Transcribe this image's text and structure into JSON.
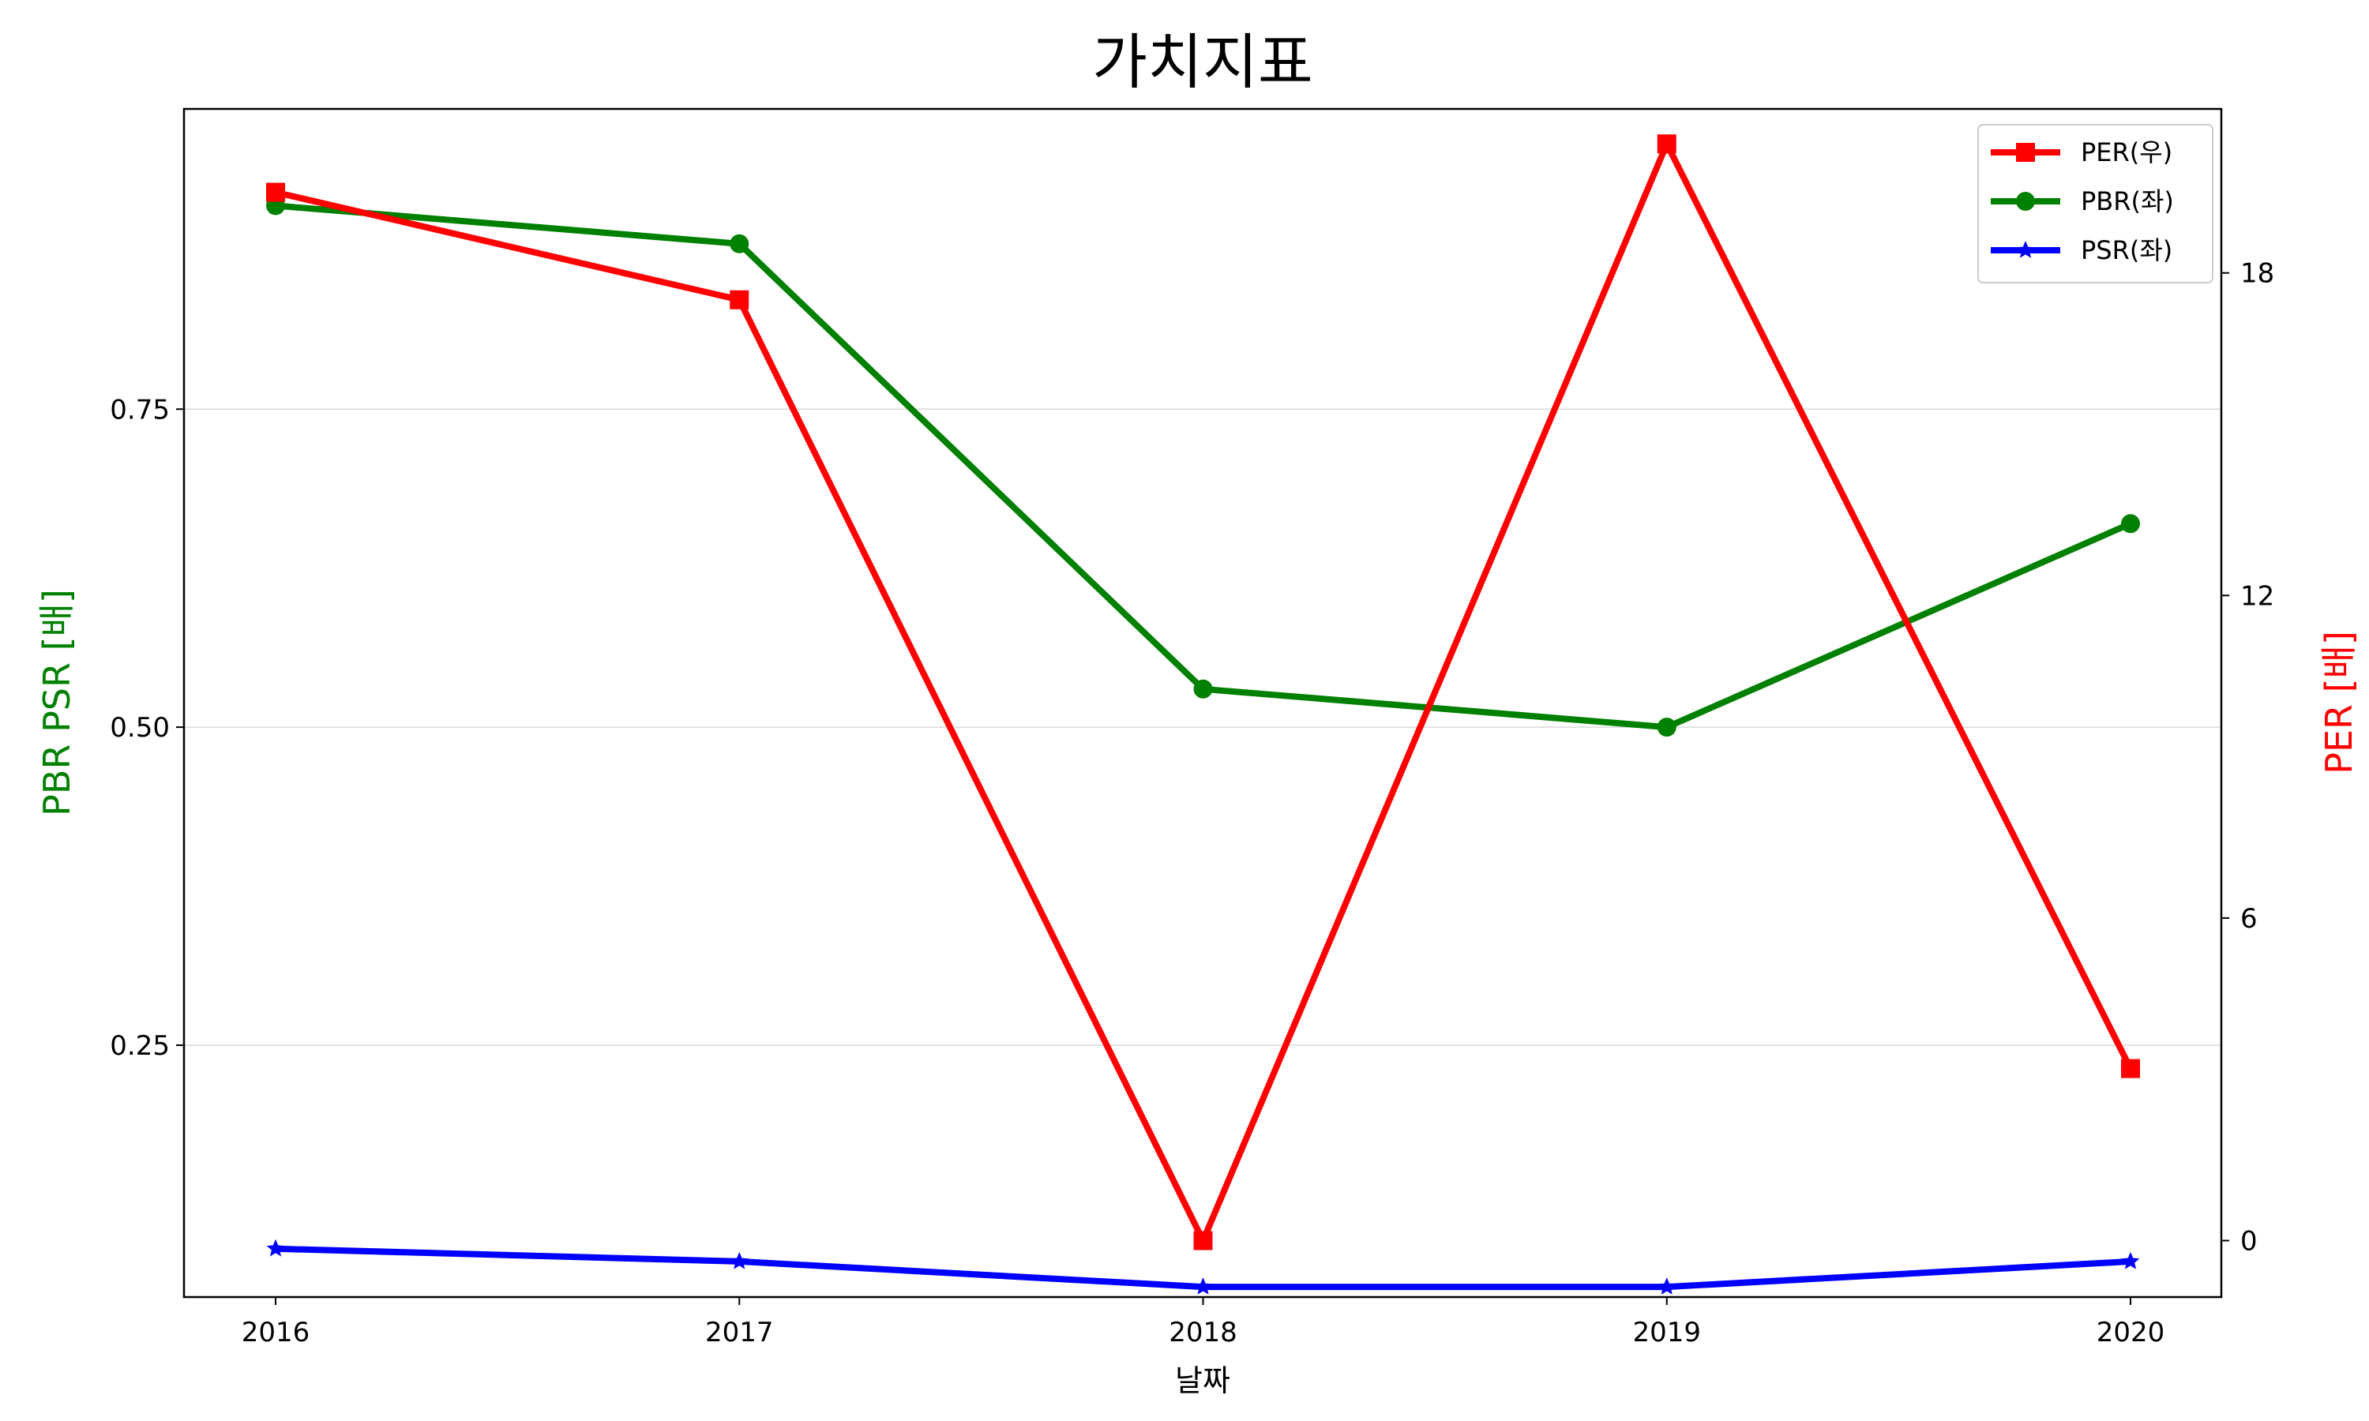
{
  "chart_data": {
    "type": "line",
    "title": "가치지표",
    "xlabel": "날짜",
    "ylabel_left": "PBR PSR [배]",
    "ylabel_right": "PER [배]",
    "categories": [
      "2016",
      "2017",
      "2018",
      "2019",
      "2020"
    ],
    "y_left": {
      "ticks": [
        "0.25",
        "0.50",
        "0.75"
      ],
      "lim": [
        0.052,
        0.986
      ]
    },
    "y_right": {
      "ticks": [
        "0",
        "6",
        "12",
        "18"
      ],
      "lim": [
        -1.05,
        21.05
      ]
    },
    "grid": "horizontal, left axis",
    "legend_placement": "top-right",
    "series": [
      {
        "name": "PER(우)",
        "axis": "right",
        "color": "#ff0000",
        "marker": "square",
        "values": [
          19.5,
          17.5,
          0,
          20.4,
          3.2
        ]
      },
      {
        "name": "PBR(좌)",
        "axis": "left",
        "color": "#008000",
        "marker": "circle",
        "values": [
          0.91,
          0.88,
          0.53,
          0.5,
          0.66
        ]
      },
      {
        "name": "PSR(좌)",
        "axis": "left",
        "color": "#0000ff",
        "marker": "star",
        "values": [
          0.09,
          0.08,
          0.06,
          0.06,
          0.08
        ]
      }
    ]
  }
}
